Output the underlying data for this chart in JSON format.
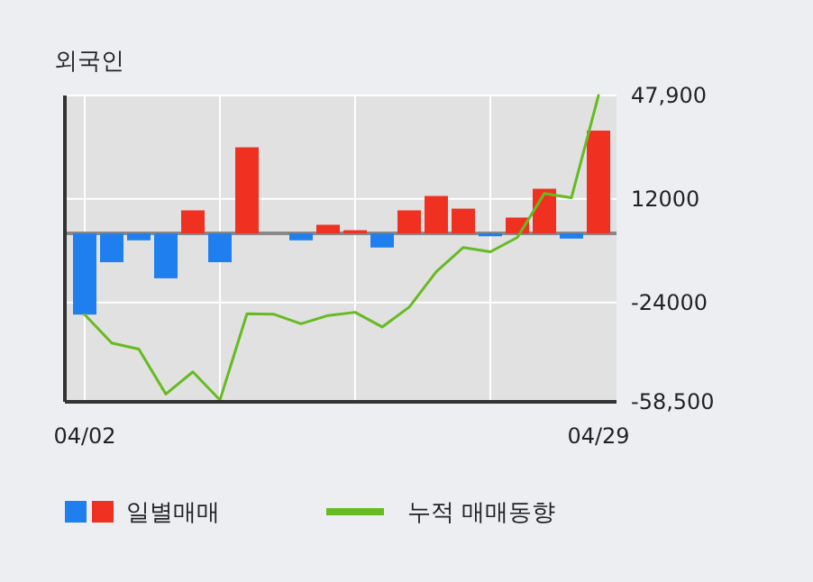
{
  "chart_data": {
    "type": "bar",
    "title": "외국인",
    "categories": [
      "04/02",
      null,
      null,
      null,
      null,
      null,
      null,
      null,
      null,
      null,
      null,
      null,
      null,
      null,
      null,
      null,
      null,
      null,
      null,
      "04/29"
    ],
    "series": [
      {
        "name": "일별매매",
        "colors": [
          "#1f7fef",
          "#1f7fef",
          "#1f7fef",
          "#1f7fef",
          "#f03020",
          "#1f7fef",
          "#f03020",
          "#f03020",
          "#1f7fef",
          "#f03020",
          "#f03020",
          "#1f7fef",
          "#f03020",
          "#f03020",
          "#f03020",
          "#1f7fef",
          "#f03020",
          "#f03020",
          "#1f7fef",
          "#f03020"
        ],
        "values": [
          -28200,
          -10000,
          -2400,
          -15600,
          8000,
          -10000,
          29900,
          0,
          -2400,
          3000,
          1100,
          -4900,
          8000,
          13000,
          8600,
          -1000,
          5500,
          15500,
          -1800,
          35700
        ]
      },
      {
        "name": "누적 매매동향",
        "type": "line",
        "color": "#66bb22",
        "values": [
          -28200,
          -38100,
          -40200,
          -55800,
          -48100,
          -57900,
          -27900,
          -28100,
          -31400,
          -28500,
          -27400,
          -32500,
          -25600,
          -13300,
          -4900,
          -6400,
          -1400,
          13900,
          12400,
          47900
        ]
      }
    ],
    "ylim": [
      -58500,
      47900
    ],
    "yticks": [
      {
        "value": 47900,
        "label": "47,900"
      },
      12000,
      -24000,
      {
        "value": -58500,
        "label": "-58,500"
      }
    ],
    "grid": true,
    "legend": "bottom"
  }
}
